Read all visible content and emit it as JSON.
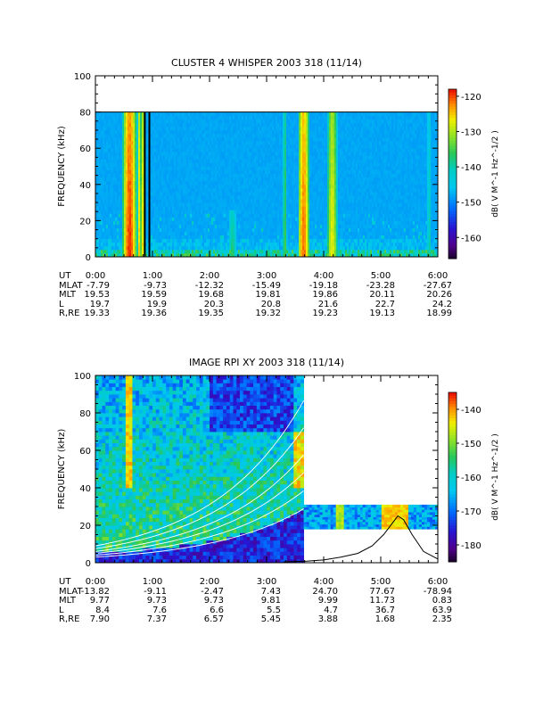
{
  "chart_data": [
    {
      "type": "heatmap",
      "title": "CLUSTER 4 WHISPER 2003 318 (11/14)",
      "ylabel": "FREQUENCY (kHz)",
      "ylim": [
        0,
        100
      ],
      "yticks": [
        "0",
        "20",
        "40",
        "60",
        "80",
        "100"
      ],
      "xlim_hours": [
        0,
        6
      ],
      "xticks": [
        "0:00",
        "1:00",
        "2:00",
        "3:00",
        "4:00",
        "5:00",
        "6:00"
      ],
      "data_freq_max_khz": 80,
      "colorbar": {
        "label": "dB( V M^-1 Hz^-1/2 )",
        "range": [
          -166,
          -118
        ],
        "ticks": [
          "-120",
          "-130",
          "-140",
          "-150",
          "-160"
        ],
        "tick_values": [
          -120,
          -130,
          -140,
          -150,
          -160
        ]
      },
      "background_level_db": -148,
      "bursts": [
        {
          "t": 0.6,
          "width_h": 0.12,
          "fmax_khz": 80,
          "peak_db": -120
        },
        {
          "t": 0.77,
          "width_h": 0.04,
          "fmax_khz": 80,
          "peak_db": -126
        },
        {
          "t": 0.84,
          "width_h": 0.03,
          "fmax_khz": 80,
          "peak_db": -124
        },
        {
          "t": 2.4,
          "width_h": 0.1,
          "fmax_khz": 25,
          "peak_db": -138
        },
        {
          "t": 3.32,
          "width_h": 0.05,
          "fmax_khz": 80,
          "peak_db": -136
        },
        {
          "t": 3.65,
          "width_h": 0.1,
          "fmax_khz": 80,
          "peak_db": -122
        },
        {
          "t": 4.15,
          "width_h": 0.1,
          "fmax_khz": 80,
          "peak_db": -128
        },
        {
          "t": 5.85,
          "width_h": 0.05,
          "fmax_khz": 80,
          "peak_db": -140
        }
      ],
      "data_gaps_hours": [
        [
          0.85,
          0.87
        ],
        [
          0.93,
          0.96
        ]
      ],
      "ephemeris": {
        "labels": [
          "UT",
          "MLAT",
          "MLT",
          "L",
          "R,RE"
        ],
        "rows": [
          [
            "0:00",
            "1:00",
            "2:00",
            "3:00",
            "4:00",
            "5:00",
            "6:00"
          ],
          [
            "-7.79",
            "-9.73",
            "-12.32",
            "-15.49",
            "-19.18",
            "-23.28",
            "-27.67"
          ],
          [
            "19.53",
            "19.59",
            "19.68",
            "19.81",
            "19.86",
            "20.11",
            "20.26"
          ],
          [
            "19.7",
            "19.9",
            "20.3",
            "20.8",
            "21.6",
            "22.7",
            "24.2"
          ],
          [
            "19.33",
            "19.36",
            "19.35",
            "19.32",
            "19.23",
            "19.13",
            "18.99"
          ]
        ]
      }
    },
    {
      "type": "heatmap",
      "title": "IMAGE RPI XY 2003 318 (11/14)",
      "ylabel": "FREQUENCY (kHz)",
      "ylim": [
        0,
        100
      ],
      "yticks": [
        "0",
        "20",
        "40",
        "60",
        "80",
        "100"
      ],
      "xlim_hours": [
        0,
        6
      ],
      "xticks": [
        "0:00",
        "1:00",
        "2:00",
        "3:00",
        "4:00",
        "5:00",
        "6:00"
      ],
      "colorbar": {
        "label": "dB( V M^-1 Hz^-1/2 )",
        "range": [
          -185,
          -135
        ],
        "ticks": [
          "-140",
          "-150",
          "-160",
          "-170",
          "-180"
        ],
        "tick_values": [
          -140,
          -150,
          -160,
          -170,
          -180
        ]
      },
      "segments": [
        {
          "t0": 0.0,
          "t1": 3.65,
          "fmin_khz": 0,
          "fmax_khz": 100
        },
        {
          "t0": 3.65,
          "t1": 6.0,
          "fmin_khz": 18,
          "fmax_khz": 31
        }
      ],
      "white_curve_fp0_khz": [
        3.0,
        4.0,
        5.0,
        6.0,
        7.5,
        9.0
      ],
      "black_trace": {
        "x_hours": [
          3.3,
          3.7,
          4.0,
          4.3,
          4.6,
          4.85,
          5.05,
          5.2,
          5.3,
          5.4,
          5.55,
          5.75,
          6.0
        ],
        "y_khz": [
          0.5,
          0.8,
          1.5,
          3,
          5,
          9,
          15,
          21,
          25,
          23,
          15,
          6,
          2
        ]
      },
      "ephemeris": {
        "labels": [
          "UT",
          "MLAT",
          "MLT",
          "L",
          "R,RE"
        ],
        "rows": [
          [
            "0:00",
            "1:00",
            "2:00",
            "3:00",
            "4:00",
            "5:00",
            "6:00"
          ],
          [
            "-13.82",
            "-9.11",
            "-2.47",
            "7.43",
            "24.70",
            "77.67",
            "-78.94"
          ],
          [
            "9.77",
            "9.73",
            "9.73",
            "9.81",
            "9.99",
            "11.73",
            "0.83"
          ],
          [
            "8.4",
            "7.6",
            "6.6",
            "5.5",
            "4.7",
            "36.7",
            "63.9"
          ],
          [
            "7.90",
            "7.37",
            "6.57",
            "5.45",
            "3.88",
            "1.68",
            "2.35"
          ]
        ]
      }
    }
  ]
}
